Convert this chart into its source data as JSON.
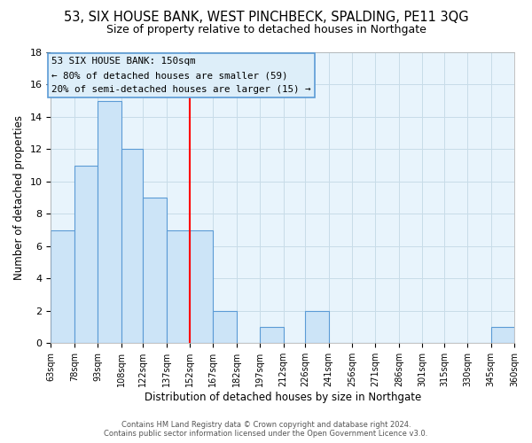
{
  "title": "53, SIX HOUSE BANK, WEST PINCHBECK, SPALDING, PE11 3QG",
  "subtitle": "Size of property relative to detached houses in Northgate",
  "xlabel": "Distribution of detached houses by size in Northgate",
  "ylabel": "Number of detached properties",
  "bin_edges": [
    63,
    78,
    93,
    108,
    122,
    137,
    152,
    167,
    182,
    197,
    212,
    226,
    241,
    256,
    271,
    286,
    301,
    315,
    330,
    345,
    360
  ],
  "bin_counts": [
    7,
    11,
    15,
    12,
    9,
    7,
    7,
    2,
    0,
    1,
    0,
    2,
    0,
    0,
    0,
    0,
    0,
    0,
    0,
    1
  ],
  "bar_facecolor": "#cce4f7",
  "bar_edgecolor": "#5b9bd5",
  "reference_line_x": 152,
  "reference_line_color": "red",
  "ylim": [
    0,
    18
  ],
  "yticks": [
    0,
    2,
    4,
    6,
    8,
    10,
    12,
    14,
    16,
    18
  ],
  "tick_labels": [
    "63sqm",
    "78sqm",
    "93sqm",
    "108sqm",
    "122sqm",
    "137sqm",
    "152sqm",
    "167sqm",
    "182sqm",
    "197sqm",
    "212sqm",
    "226sqm",
    "241sqm",
    "256sqm",
    "271sqm",
    "286sqm",
    "301sqm",
    "315sqm",
    "330sqm",
    "345sqm",
    "360sqm"
  ],
  "annotation_title": "53 SIX HOUSE BANK: 150sqm",
  "annotation_line1": "← 80% of detached houses are smaller (59)",
  "annotation_line2": "20% of semi-detached houses are larger (15) →",
  "annotation_bg": "#ddeef9",
  "annotation_edge": "#5b9bd5",
  "plot_bg": "#e8f4fc",
  "grid_color": "#c8dce8",
  "footer1": "Contains HM Land Registry data © Crown copyright and database right 2024.",
  "footer2": "Contains public sector information licensed under the Open Government Licence v3.0.",
  "title_fontsize": 10.5,
  "subtitle_fontsize": 9
}
